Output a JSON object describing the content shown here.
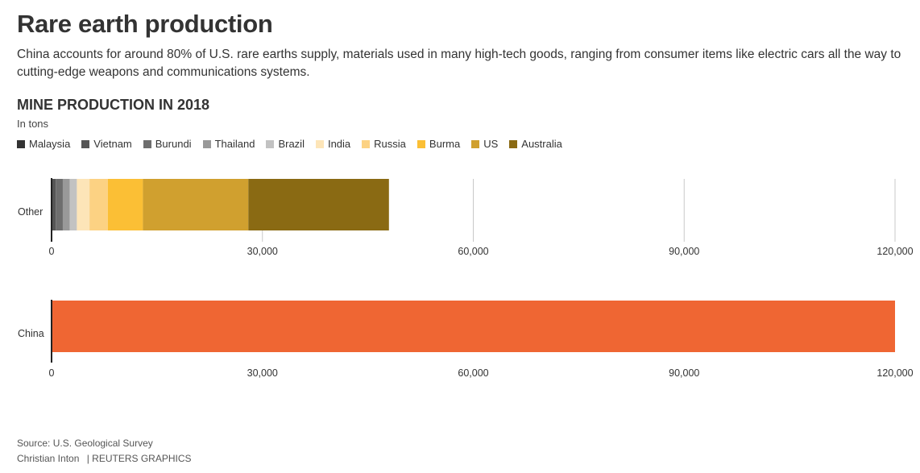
{
  "header": {
    "title": "Rare earth production",
    "description": "China accounts for around 80% of U.S. rare earths supply, materials used in many high-tech goods, ranging from consumer items like electric cars all the way to cutting-edge weapons and communications systems.",
    "subtitle": "MINE PRODUCTION IN 2018",
    "unit": "In tons"
  },
  "footer": {
    "source": "Source: U.S. Geological Survey",
    "credit": "Christian Inton",
    "brand": "| REUTERS GRAPHICS"
  },
  "chart_data": [
    {
      "type": "bar",
      "orientation": "horizontal",
      "stacked": true,
      "categories": [
        "Other"
      ],
      "series": [
        {
          "name": "Malaysia",
          "values": [
            200
          ],
          "color": "#333333"
        },
        {
          "name": "Vietnam",
          "values": [
            400
          ],
          "color": "#555555"
        },
        {
          "name": "Burundi",
          "values": [
            1000
          ],
          "color": "#6e6e6e"
        },
        {
          "name": "Thailand",
          "values": [
            1000
          ],
          "color": "#999999"
        },
        {
          "name": "Brazil",
          "values": [
            1000
          ],
          "color": "#c2c2c2"
        },
        {
          "name": "India",
          "values": [
            1800
          ],
          "color": "#fde5b8"
        },
        {
          "name": "Russia",
          "values": [
            2600
          ],
          "color": "#fcd283"
        },
        {
          "name": "Burma",
          "values": [
            5000
          ],
          "color": "#fbbf35"
        },
        {
          "name": "US",
          "values": [
            15000
          ],
          "color": "#d0a02f"
        },
        {
          "name": "Australia",
          "values": [
            20000
          ],
          "color": "#8a6a13"
        }
      ],
      "xlim": [
        0,
        120000
      ],
      "ticks": [
        "0",
        "30,000",
        "60,000",
        "90,000",
        "120,000"
      ],
      "tick_values": [
        0,
        30000,
        60000,
        90000,
        120000
      ],
      "grid": true,
      "legend": "top-left"
    },
    {
      "type": "bar",
      "orientation": "horizontal",
      "categories": [
        "China"
      ],
      "series": [
        {
          "values": [
            120000
          ],
          "color": "#ef6633"
        }
      ],
      "xlim": [
        0,
        120000
      ],
      "ticks": [
        "0",
        "30,000",
        "60,000",
        "90,000",
        "120,000"
      ],
      "tick_values": [
        0,
        30000,
        60000,
        90000,
        120000
      ],
      "grid": false
    }
  ]
}
